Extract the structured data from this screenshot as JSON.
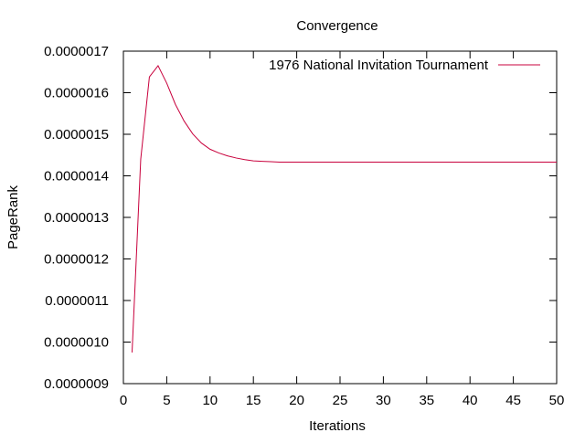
{
  "chart_data": {
    "type": "line",
    "title": "Convergence",
    "xlabel": "Iterations",
    "ylabel": "PageRank",
    "xlim": [
      0,
      50
    ],
    "ylim": [
      9e-07,
      1.7e-06
    ],
    "x_ticks": [
      0,
      5,
      10,
      15,
      20,
      25,
      30,
      35,
      40,
      45,
      50
    ],
    "x_tick_labels": [
      "0",
      "5",
      "10",
      "15",
      "20",
      "25",
      "30",
      "35",
      "40",
      "45",
      "50"
    ],
    "y_ticks": [
      9e-07,
      1e-06,
      1.1e-06,
      1.2e-06,
      1.3e-06,
      1.4e-06,
      1.5e-06,
      1.6e-06,
      1.7e-06
    ],
    "y_tick_labels": [
      "0.0000009",
      "0.0000010",
      "0.0000011",
      "0.0000012",
      "0.0000013",
      "0.0000014",
      "0.0000015",
      "0.0000016",
      "0.0000017"
    ],
    "grid": false,
    "legend_position": "top-right",
    "series": [
      {
        "name": "1976 National Invitation Tournament",
        "color": "#c8003c",
        "x": [
          1,
          2,
          3,
          4,
          5,
          6,
          7,
          8,
          9,
          10,
          11,
          12,
          13,
          14,
          15,
          16,
          17,
          18,
          19,
          20,
          21,
          22,
          23,
          24,
          25,
          26,
          27,
          28,
          29,
          30,
          31,
          32,
          33,
          34,
          35,
          36,
          37,
          38,
          39,
          40,
          41,
          42,
          43,
          44,
          45,
          46,
          47,
          48,
          49,
          50
        ],
        "values": [
          9.75e-07,
          1.44e-06,
          1.638e-06,
          1.665e-06,
          1.623e-06,
          1.572e-06,
          1.532e-06,
          1.501e-06,
          1.479e-06,
          1.464e-06,
          1.455e-06,
          1.448e-06,
          1.443e-06,
          1.439e-06,
          1.436e-06,
          1.435e-06,
          1.434e-06,
          1.433e-06,
          1.433e-06,
          1.433e-06,
          1.433e-06,
          1.433e-06,
          1.433e-06,
          1.433e-06,
          1.433e-06,
          1.433e-06,
          1.433e-06,
          1.433e-06,
          1.433e-06,
          1.433e-06,
          1.433e-06,
          1.433e-06,
          1.433e-06,
          1.433e-06,
          1.433e-06,
          1.433e-06,
          1.433e-06,
          1.433e-06,
          1.433e-06,
          1.433e-06,
          1.433e-06,
          1.433e-06,
          1.433e-06,
          1.433e-06,
          1.433e-06,
          1.433e-06,
          1.433e-06,
          1.433e-06,
          1.433e-06,
          1.433e-06
        ]
      }
    ]
  }
}
